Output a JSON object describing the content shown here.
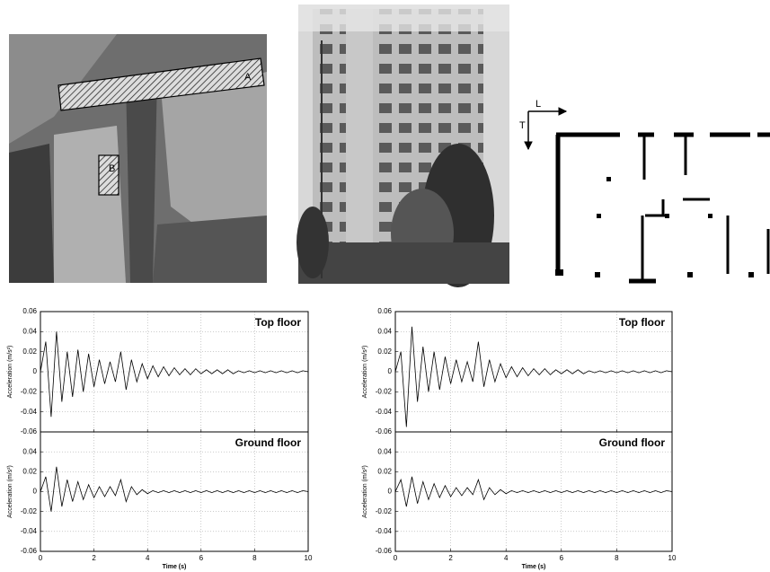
{
  "aerial_photo": {
    "labels": [
      "A",
      "B"
    ]
  },
  "floor_plan": {
    "axes": [
      "L",
      "T"
    ]
  },
  "chart_data": [
    {
      "type": "line",
      "title": "Top floor",
      "y_label": "Acceleration (m/s²)",
      "color": "#000000",
      "grid": true,
      "show_xtick_labels": false,
      "xlim": [
        0,
        10
      ],
      "xticks": [
        0,
        2,
        4,
        6,
        8,
        10
      ],
      "ylim": [
        -0.06,
        0.06
      ],
      "yticks": [
        -0.06,
        -0.04,
        -0.02,
        0,
        0.02,
        0.04,
        0.06
      ],
      "x": [
        0,
        0.2,
        0.4,
        0.6,
        0.8,
        1,
        1.2,
        1.4,
        1.6,
        1.8,
        2,
        2.2,
        2.4,
        2.6,
        2.8,
        3,
        3.2,
        3.4,
        3.6,
        3.8,
        4,
        4.2,
        4.4,
        4.6,
        4.8,
        5,
        5.2,
        5.4,
        5.6,
        5.8,
        6,
        6.2,
        6.4,
        6.6,
        6.8,
        7,
        7.2,
        7.4,
        7.6,
        7.8,
        8,
        8.2,
        8.4,
        8.6,
        8.8,
        9,
        9.2,
        9.4,
        9.6,
        9.8,
        10
      ],
      "values": [
        0,
        0.03,
        -0.045,
        0.04,
        -0.03,
        0.02,
        -0.025,
        0.022,
        -0.02,
        0.018,
        -0.015,
        0.012,
        -0.012,
        0.01,
        -0.01,
        0.02,
        -0.018,
        0.012,
        -0.01,
        0.008,
        -0.007,
        0.006,
        -0.005,
        0.005,
        -0.004,
        0.004,
        -0.003,
        0.003,
        -0.003,
        0.003,
        -0.002,
        0.002,
        -0.002,
        0.002,
        -0.002,
        0.002,
        -0.002,
        0.001,
        -0.001,
        0.001,
        -0.001,
        0.001,
        -0.001,
        0.001,
        -0.001,
        0.001,
        -0.001,
        0.001,
        -0.001,
        0.001,
        0
      ]
    },
    {
      "type": "line",
      "title": "Ground floor",
      "y_label": "Acceleration (m/s²)",
      "x_label": "Time (s)",
      "color": "#000000",
      "grid": true,
      "show_xtick_labels": true,
      "xlim": [
        0,
        10
      ],
      "xticks": [
        0,
        2,
        4,
        6,
        8,
        10
      ],
      "ylim": [
        -0.06,
        0.06
      ],
      "yticks": [
        -0.06,
        -0.04,
        -0.02,
        0,
        0.02,
        0.04
      ],
      "x": [
        0,
        0.2,
        0.4,
        0.6,
        0.8,
        1,
        1.2,
        1.4,
        1.6,
        1.8,
        2,
        2.2,
        2.4,
        2.6,
        2.8,
        3,
        3.2,
        3.4,
        3.6,
        3.8,
        4,
        4.2,
        4.4,
        4.6,
        4.8,
        5,
        5.2,
        5.4,
        5.6,
        5.8,
        6,
        6.2,
        6.4,
        6.6,
        6.8,
        7,
        7.2,
        7.4,
        7.6,
        7.8,
        8,
        8.2,
        8.4,
        8.6,
        8.8,
        9,
        9.2,
        9.4,
        9.6,
        9.8,
        10
      ],
      "values": [
        0,
        0.015,
        -0.02,
        0.025,
        -0.015,
        0.012,
        -0.01,
        0.01,
        -0.008,
        0.007,
        -0.006,
        0.005,
        -0.005,
        0.005,
        -0.004,
        0.012,
        -0.01,
        0.005,
        -0.003,
        0.002,
        -0.002,
        0.001,
        -0.001,
        0.001,
        -0.001,
        0.001,
        -0.001,
        0.001,
        -0.001,
        0.001,
        -0.001,
        0.001,
        -0.001,
        0.001,
        -0.001,
        0.001,
        -0.001,
        0.001,
        -0.001,
        0.001,
        -0.001,
        0.001,
        -0.001,
        0.001,
        -0.001,
        0.001,
        -0.001,
        0.001,
        -0.001,
        0.001,
        0
      ]
    },
    {
      "type": "line",
      "title": "Top floor",
      "y_label": "Acceleration (m/s²)",
      "color": "#000000",
      "grid": true,
      "show_xtick_labels": false,
      "xlim": [
        0,
        10
      ],
      "xticks": [
        0,
        2,
        4,
        6,
        8,
        10
      ],
      "ylim": [
        -0.06,
        0.06
      ],
      "yticks": [
        -0.06,
        -0.04,
        -0.02,
        0,
        0.02,
        0.04,
        0.06
      ],
      "x": [
        0,
        0.2,
        0.4,
        0.6,
        0.8,
        1,
        1.2,
        1.4,
        1.6,
        1.8,
        2,
        2.2,
        2.4,
        2.6,
        2.8,
        3,
        3.2,
        3.4,
        3.6,
        3.8,
        4,
        4.2,
        4.4,
        4.6,
        4.8,
        5,
        5.2,
        5.4,
        5.6,
        5.8,
        6,
        6.2,
        6.4,
        6.6,
        6.8,
        7,
        7.2,
        7.4,
        7.6,
        7.8,
        8,
        8.2,
        8.4,
        8.6,
        8.8,
        9,
        9.2,
        9.4,
        9.6,
        9.8,
        10
      ],
      "values": [
        0,
        0.02,
        -0.055,
        0.045,
        -0.03,
        0.025,
        -0.02,
        0.02,
        -0.018,
        0.015,
        -0.012,
        0.012,
        -0.01,
        0.01,
        -0.01,
        0.03,
        -0.015,
        0.012,
        -0.01,
        0.008,
        -0.006,
        0.005,
        -0.005,
        0.004,
        -0.004,
        0.003,
        -0.003,
        0.003,
        -0.003,
        0.002,
        -0.002,
        0.002,
        -0.002,
        0.002,
        -0.002,
        0.001,
        -0.001,
        0.001,
        -0.001,
        0.001,
        -0.001,
        0.001,
        -0.001,
        0.001,
        -0.001,
        0.001,
        -0.001,
        0.001,
        -0.001,
        0.001,
        0
      ]
    },
    {
      "type": "line",
      "title": "Ground floor",
      "y_label": "Acceleration (m/s²)",
      "x_label": "Time (s)",
      "color": "#000000",
      "grid": true,
      "show_xtick_labels": true,
      "xlim": [
        0,
        10
      ],
      "xticks": [
        0,
        2,
        4,
        6,
        8,
        10
      ],
      "ylim": [
        -0.06,
        0.06
      ],
      "yticks": [
        -0.06,
        -0.04,
        -0.02,
        0,
        0.02,
        0.04
      ],
      "x": [
        0,
        0.2,
        0.4,
        0.6,
        0.8,
        1,
        1.2,
        1.4,
        1.6,
        1.8,
        2,
        2.2,
        2.4,
        2.6,
        2.8,
        3,
        3.2,
        3.4,
        3.6,
        3.8,
        4,
        4.2,
        4.4,
        4.6,
        4.8,
        5,
        5.2,
        5.4,
        5.6,
        5.8,
        6,
        6.2,
        6.4,
        6.6,
        6.8,
        7,
        7.2,
        7.4,
        7.6,
        7.8,
        8,
        8.2,
        8.4,
        8.6,
        8.8,
        9,
        9.2,
        9.4,
        9.6,
        9.8,
        10
      ],
      "values": [
        0,
        0.012,
        -0.015,
        0.015,
        -0.012,
        0.01,
        -0.008,
        0.008,
        -0.006,
        0.006,
        -0.005,
        0.004,
        -0.004,
        0.004,
        -0.003,
        0.012,
        -0.008,
        0.004,
        -0.003,
        0.002,
        -0.002,
        0.001,
        -0.001,
        0.001,
        -0.001,
        0.001,
        -0.001,
        0.001,
        -0.001,
        0.001,
        -0.001,
        0.001,
        -0.001,
        0.001,
        -0.001,
        0.001,
        -0.001,
        0.001,
        -0.001,
        0.001,
        -0.001,
        0.001,
        -0.001,
        0.001,
        -0.001,
        0.001,
        -0.001,
        0.001,
        -0.001,
        0.001,
        0
      ]
    }
  ]
}
